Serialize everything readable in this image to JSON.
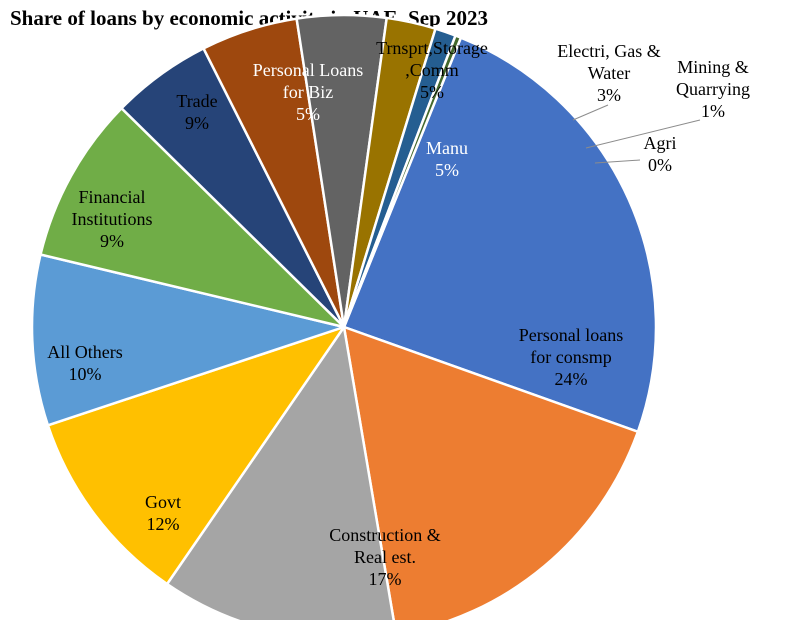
{
  "chart_data": {
    "type": "pie",
    "title": "Share of loans by economic activity in UAE, Sep 2023",
    "slices": [
      {
        "lines": [
          "Personal loans",
          "for consmp",
          "24%"
        ],
        "value": 24.8,
        "color": "#4472C4",
        "text_color": "#000000"
      },
      {
        "lines": [
          "Construction &",
          "Real est.",
          "17%"
        ],
        "value": 17.2,
        "color": "#ED7D31",
        "text_color": "#000000"
      },
      {
        "lines": [
          "Govt",
          "12%"
        ],
        "value": 12.5,
        "color": "#A5A5A5",
        "text_color": "#000000"
      },
      {
        "lines": [
          "All Others",
          "10%"
        ],
        "value": 10.5,
        "color": "#FFC000",
        "text_color": "#000000"
      },
      {
        "lines": [
          "Financial",
          "Institutions",
          "9%"
        ],
        "value": 9.0,
        "color": "#5B9BD5",
        "text_color": "#000000"
      },
      {
        "lines": [
          "Trade",
          "9%"
        ],
        "value": 8.8,
        "color": "#70AD47",
        "text_color": "#000000"
      },
      {
        "lines": [
          "Personal Loans",
          "for Biz",
          "5%"
        ],
        "value": 5.3,
        "color": "#264478",
        "text_color": "#ffffff"
      },
      {
        "lines": [
          "Trnsprt,Storage",
          ",Comm",
          "5%"
        ],
        "value": 5.1,
        "color": "#9E480E",
        "text_color": "#000000"
      },
      {
        "lines": [
          "Manu",
          "5%"
        ],
        "value": 4.7,
        "color": "#636363",
        "text_color": "#ffffff"
      },
      {
        "lines": [
          "Electri, Gas &",
          "Water",
          "3%"
        ],
        "value": 2.6,
        "color": "#997300",
        "text_color": "#000000"
      },
      {
        "lines": [
          "Mining &",
          "Quarrying",
          "1%"
        ],
        "value": 1.1,
        "color": "#255E91",
        "text_color": "#000000"
      },
      {
        "lines": [
          "Agri",
          "0%"
        ],
        "value": 0.3,
        "color": "#43682B",
        "text_color": "#000000"
      }
    ]
  }
}
